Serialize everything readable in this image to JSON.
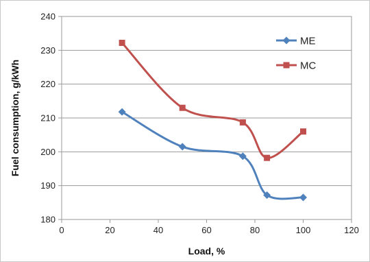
{
  "chart_data": {
    "type": "line",
    "title": "",
    "xlabel": "Load, %",
    "ylabel": "Fuel consumption, g/kWh",
    "xlim": [
      0,
      120
    ],
    "ylim": [
      180,
      240
    ],
    "xticks": [
      0,
      20,
      40,
      60,
      80,
      100,
      120
    ],
    "yticks": [
      180,
      190,
      200,
      210,
      220,
      230,
      240
    ],
    "x_tick_labels": [
      "0",
      "20",
      "40",
      "60",
      "80",
      "100",
      "120"
    ],
    "y_tick_labels": [
      "180",
      "190",
      "200",
      "210",
      "220",
      "230",
      "240"
    ],
    "grid": "horizontal",
    "legend_position": "top-right",
    "smooth": true,
    "series": [
      {
        "name": "ME",
        "color": "#4F81BD",
        "marker": "diamond",
        "x": [
          25,
          50,
          75,
          85,
          100
        ],
        "y": [
          211.8,
          201.5,
          198.7,
          187.2,
          186.5
        ]
      },
      {
        "name": "MC",
        "color": "#C0504D",
        "marker": "square",
        "x": [
          25,
          50,
          75,
          85,
          100
        ],
        "y": [
          232.2,
          213.0,
          208.7,
          198.2,
          206.0
        ]
      }
    ]
  }
}
